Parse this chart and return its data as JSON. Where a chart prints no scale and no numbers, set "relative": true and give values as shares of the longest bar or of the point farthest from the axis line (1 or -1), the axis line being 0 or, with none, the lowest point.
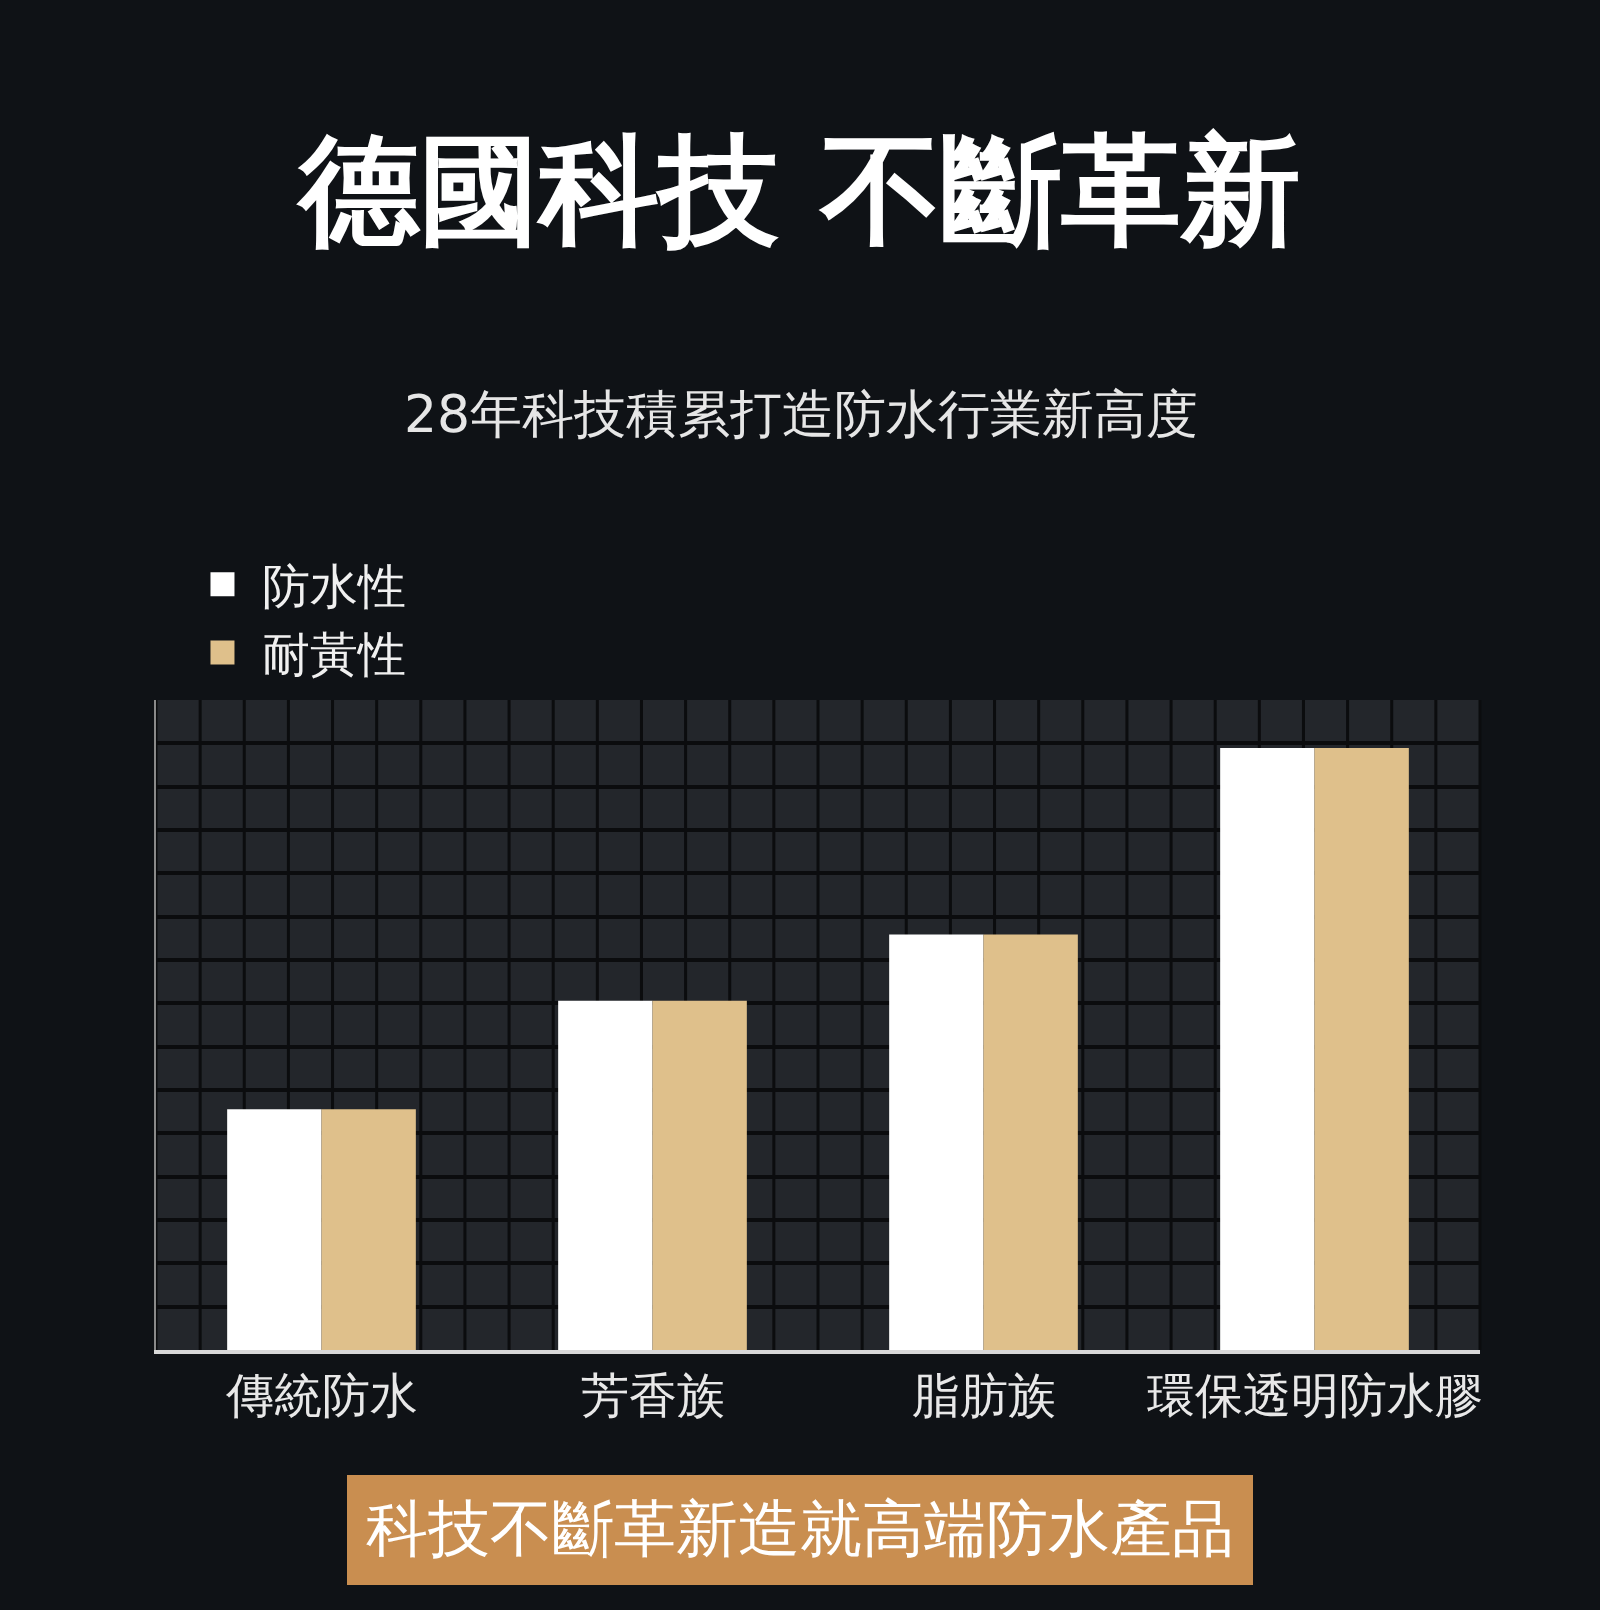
{
  "chart_data": {
    "type": "bar",
    "title": "德國科技 不斷革新",
    "subtitle": "28年科技積累打造防水行業新高度",
    "categories": [
      "傳統防水",
      "芳香族",
      "脂肪族",
      "環保透明防水膠"
    ],
    "relative": true,
    "series": [
      {
        "name": "防水性",
        "color": "#ffffff",
        "values": [
          0.4,
          0.58,
          0.69,
          1
        ]
      },
      {
        "name": "耐黃性",
        "color": "#dfc08b",
        "values": [
          0.4,
          0.58,
          0.69,
          1
        ]
      }
    ],
    "legend": "top left",
    "grid": true,
    "annotations": [
      "科技不斷革新造就高端防水產品"
    ]
  }
}
